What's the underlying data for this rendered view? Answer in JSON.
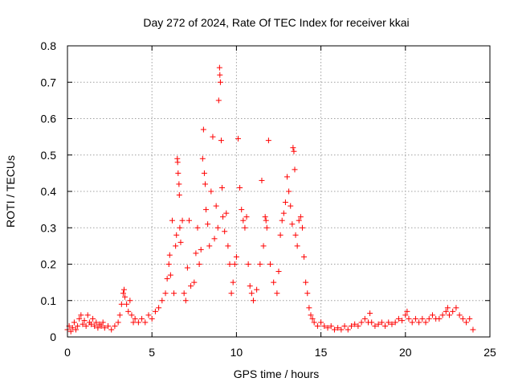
{
  "chart_data": {
    "type": "scatter",
    "title": "Day 272 of 2024, Rate Of TEC Index for receiver kkai",
    "xlabel": "GPS time / hours",
    "ylabel": "ROTI / TECUs",
    "xlim": [
      0,
      25
    ],
    "ylim": [
      0,
      0.8
    ],
    "x_ticks": [
      0,
      5,
      10,
      15,
      20,
      25
    ],
    "y_ticks": [
      0,
      0.1,
      0.2,
      0.3,
      0.4,
      0.5,
      0.6,
      0.7,
      0.8
    ],
    "x_tick_labels": [
      "0",
      "5",
      "10",
      "15",
      "20",
      "25"
    ],
    "y_tick_labels": [
      "0",
      "0.1",
      "0.2",
      "0.3",
      "0.4",
      "0.5",
      "0.6",
      "0.7",
      "0.8"
    ],
    "grid": true,
    "marker": "plus",
    "color": "#ff0000",
    "series": [
      {
        "points": [
          [
            0.0,
            0.02
          ],
          [
            0.1,
            0.03
          ],
          [
            0.2,
            0.015
          ],
          [
            0.3,
            0.025
          ],
          [
            0.4,
            0.04
          ],
          [
            0.5,
            0.02
          ],
          [
            0.6,
            0.03
          ],
          [
            0.7,
            0.05
          ],
          [
            0.8,
            0.06
          ],
          [
            0.9,
            0.035
          ],
          [
            1.0,
            0.045
          ],
          [
            1.1,
            0.03
          ],
          [
            1.2,
            0.06
          ],
          [
            1.3,
            0.04
          ],
          [
            1.4,
            0.035
          ],
          [
            1.5,
            0.05
          ],
          [
            1.6,
            0.03
          ],
          [
            1.7,
            0.04
          ],
          [
            1.8,
            0.025
          ],
          [
            1.9,
            0.035
          ],
          [
            2.0,
            0.03
          ],
          [
            2.1,
            0.04
          ],
          [
            2.2,
            0.025
          ],
          [
            2.4,
            0.03
          ],
          [
            2.6,
            0.02
          ],
          [
            2.8,
            0.03
          ],
          [
            3.0,
            0.04
          ],
          [
            3.1,
            0.06
          ],
          [
            3.2,
            0.09
          ],
          [
            3.3,
            0.12
          ],
          [
            3.35,
            0.13
          ],
          [
            3.4,
            0.11
          ],
          [
            3.5,
            0.09
          ],
          [
            3.6,
            0.07
          ],
          [
            3.7,
            0.1
          ],
          [
            3.8,
            0.06
          ],
          [
            3.9,
            0.04
          ],
          [
            4.0,
            0.05
          ],
          [
            4.2,
            0.04
          ],
          [
            4.4,
            0.05
          ],
          [
            4.6,
            0.04
          ],
          [
            4.8,
            0.06
          ],
          [
            5.0,
            0.05
          ],
          [
            5.2,
            0.07
          ],
          [
            5.4,
            0.08
          ],
          [
            5.6,
            0.1
          ],
          [
            5.8,
            0.12
          ],
          [
            5.9,
            0.16
          ],
          [
            6.0,
            0.2
          ],
          [
            6.05,
            0.225
          ],
          [
            6.1,
            0.17
          ],
          [
            6.2,
            0.32
          ],
          [
            6.3,
            0.12
          ],
          [
            6.4,
            0.25
          ],
          [
            6.45,
            0.28
          ],
          [
            6.5,
            0.49
          ],
          [
            6.52,
            0.48
          ],
          [
            6.55,
            0.45
          ],
          [
            6.6,
            0.42
          ],
          [
            6.62,
            0.39
          ],
          [
            6.65,
            0.3
          ],
          [
            6.7,
            0.26
          ],
          [
            6.8,
            0.32
          ],
          [
            6.9,
            0.12
          ],
          [
            7.0,
            0.1
          ],
          [
            7.1,
            0.19
          ],
          [
            7.2,
            0.32
          ],
          [
            7.3,
            0.14
          ],
          [
            7.5,
            0.15
          ],
          [
            7.6,
            0.23
          ],
          [
            7.7,
            0.3
          ],
          [
            7.8,
            0.2
          ],
          [
            7.9,
            0.24
          ],
          [
            8.0,
            0.49
          ],
          [
            8.05,
            0.57
          ],
          [
            8.1,
            0.45
          ],
          [
            8.15,
            0.42
          ],
          [
            8.2,
            0.35
          ],
          [
            8.3,
            0.31
          ],
          [
            8.4,
            0.25
          ],
          [
            8.5,
            0.4
          ],
          [
            8.6,
            0.55
          ],
          [
            8.7,
            0.27
          ],
          [
            8.8,
            0.36
          ],
          [
            8.9,
            0.3
          ],
          [
            8.95,
            0.65
          ],
          [
            9.0,
            0.74
          ],
          [
            9.02,
            0.72
          ],
          [
            9.05,
            0.7
          ],
          [
            9.1,
            0.54
          ],
          [
            9.15,
            0.41
          ],
          [
            9.2,
            0.33
          ],
          [
            9.3,
            0.29
          ],
          [
            9.4,
            0.34
          ],
          [
            9.5,
            0.25
          ],
          [
            9.6,
            0.2
          ],
          [
            9.7,
            0.12
          ],
          [
            9.8,
            0.15
          ],
          [
            9.9,
            0.2
          ],
          [
            10.0,
            0.22
          ],
          [
            10.1,
            0.545
          ],
          [
            10.2,
            0.41
          ],
          [
            10.3,
            0.35
          ],
          [
            10.4,
            0.32
          ],
          [
            10.5,
            0.3
          ],
          [
            10.6,
            0.33
          ],
          [
            10.7,
            0.2
          ],
          [
            10.8,
            0.14
          ],
          [
            10.9,
            0.12
          ],
          [
            11.0,
            0.1
          ],
          [
            11.2,
            0.13
          ],
          [
            11.4,
            0.2
          ],
          [
            11.5,
            0.43
          ],
          [
            11.6,
            0.25
          ],
          [
            11.7,
            0.33
          ],
          [
            11.75,
            0.32
          ],
          [
            11.8,
            0.3
          ],
          [
            11.9,
            0.54
          ],
          [
            12.0,
            0.2
          ],
          [
            12.2,
            0.15
          ],
          [
            12.4,
            0.12
          ],
          [
            12.5,
            0.18
          ],
          [
            12.6,
            0.28
          ],
          [
            12.7,
            0.32
          ],
          [
            12.8,
            0.34
          ],
          [
            12.9,
            0.37
          ],
          [
            13.0,
            0.44
          ],
          [
            13.1,
            0.4
          ],
          [
            13.2,
            0.36
          ],
          [
            13.3,
            0.31
          ],
          [
            13.35,
            0.52
          ],
          [
            13.4,
            0.51
          ],
          [
            13.45,
            0.46
          ],
          [
            13.5,
            0.28
          ],
          [
            13.6,
            0.25
          ],
          [
            13.7,
            0.32
          ],
          [
            13.8,
            0.33
          ],
          [
            13.9,
            0.3
          ],
          [
            14.0,
            0.22
          ],
          [
            14.1,
            0.15
          ],
          [
            14.2,
            0.12
          ],
          [
            14.3,
            0.08
          ],
          [
            14.4,
            0.06
          ],
          [
            14.5,
            0.05
          ],
          [
            14.6,
            0.04
          ],
          [
            14.8,
            0.03
          ],
          [
            15.0,
            0.04
          ],
          [
            15.2,
            0.03
          ],
          [
            15.4,
            0.025
          ],
          [
            15.6,
            0.03
          ],
          [
            15.8,
            0.02
          ],
          [
            16.0,
            0.025
          ],
          [
            16.2,
            0.02
          ],
          [
            16.4,
            0.03
          ],
          [
            16.6,
            0.02
          ],
          [
            16.8,
            0.03
          ],
          [
            17.0,
            0.035
          ],
          [
            17.2,
            0.03
          ],
          [
            17.4,
            0.04
          ],
          [
            17.6,
            0.05
          ],
          [
            17.8,
            0.04
          ],
          [
            17.9,
            0.065
          ],
          [
            18.0,
            0.04
          ],
          [
            18.2,
            0.03
          ],
          [
            18.4,
            0.035
          ],
          [
            18.6,
            0.04
          ],
          [
            18.8,
            0.03
          ],
          [
            19.0,
            0.04
          ],
          [
            19.2,
            0.035
          ],
          [
            19.4,
            0.04
          ],
          [
            19.6,
            0.05
          ],
          [
            19.8,
            0.045
          ],
          [
            20.0,
            0.06
          ],
          [
            20.1,
            0.07
          ],
          [
            20.2,
            0.05
          ],
          [
            20.4,
            0.04
          ],
          [
            20.6,
            0.05
          ],
          [
            20.8,
            0.04
          ],
          [
            21.0,
            0.05
          ],
          [
            21.2,
            0.04
          ],
          [
            21.4,
            0.05
          ],
          [
            21.6,
            0.06
          ],
          [
            21.8,
            0.05
          ],
          [
            22.0,
            0.05
          ],
          [
            22.2,
            0.06
          ],
          [
            22.4,
            0.07
          ],
          [
            22.5,
            0.08
          ],
          [
            22.6,
            0.06
          ],
          [
            22.8,
            0.07
          ],
          [
            23.0,
            0.08
          ],
          [
            23.2,
            0.06
          ],
          [
            23.4,
            0.05
          ],
          [
            23.6,
            0.04
          ],
          [
            23.8,
            0.05
          ],
          [
            24.0,
            0.02
          ]
        ]
      }
    ]
  }
}
